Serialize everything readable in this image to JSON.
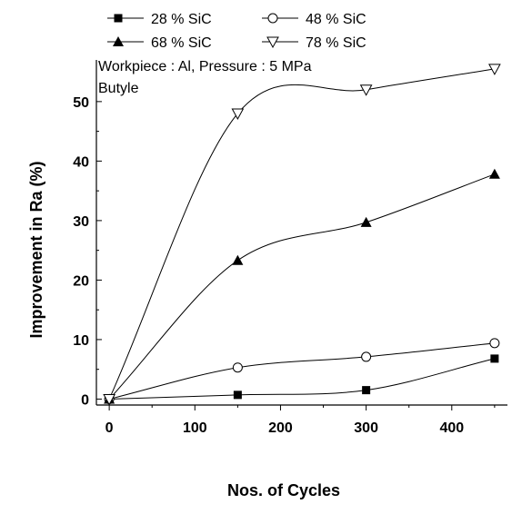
{
  "chart_data": {
    "type": "scatter",
    "xlabel": "Nos. of Cycles",
    "ylabel": "Improvement in Ra (%)",
    "xlim": [
      -15,
      465
    ],
    "ylim": [
      -1,
      57
    ],
    "xticks": [
      0,
      100,
      200,
      300,
      400
    ],
    "yticks": [
      0,
      10,
      20,
      30,
      40,
      50
    ],
    "x_tick_labels": [
      "0",
      "100",
      "200",
      "300",
      "400"
    ],
    "y_tick_labels": [
      "0",
      "10",
      "20",
      "30",
      "40",
      "50"
    ],
    "annotations": [
      "Workpiece : Al,  Pressure : 5 MPa",
      "Butyle"
    ],
    "legend_position": "top",
    "grid": false,
    "series": [
      {
        "name": "28 % SiC",
        "marker": "filled-square",
        "x": [
          0,
          150,
          300,
          450
        ],
        "y": [
          0,
          0.7,
          1.5,
          6.8
        ]
      },
      {
        "name": "48 % SiC",
        "marker": "open-circle",
        "x": [
          0,
          150,
          300,
          450
        ],
        "y": [
          0,
          5.3,
          7.1,
          9.4
        ]
      },
      {
        "name": "68 % SiC",
        "marker": "filled-triangle-up",
        "x": [
          0,
          150,
          300,
          450
        ],
        "y": [
          0,
          23.3,
          29.7,
          37.8
        ]
      },
      {
        "name": "78 % SiC",
        "marker": "open-triangle-down",
        "x": [
          0,
          150,
          300,
          450
        ],
        "y": [
          0,
          48,
          52,
          55.5
        ]
      }
    ]
  }
}
